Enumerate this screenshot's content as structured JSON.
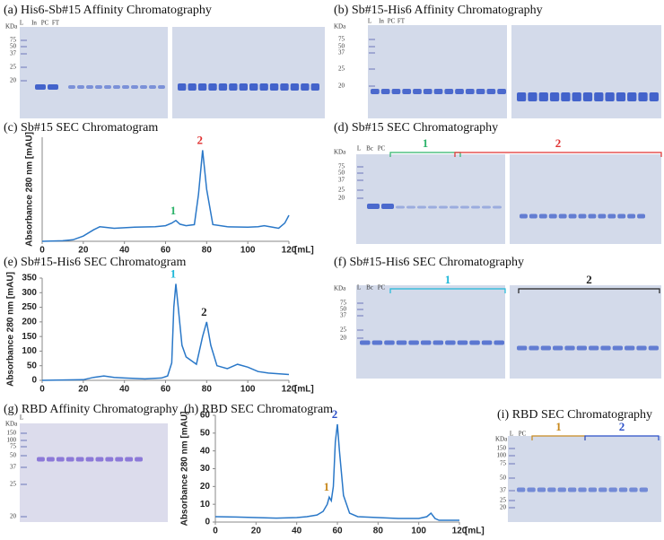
{
  "chart_data": [
    {
      "type": "line",
      "label": "(c)",
      "title": "Sb#15 SEC Chromatogram",
      "ylabel": "Absorbance 280 nm [mAU]",
      "xlabel": "[mL]",
      "color": "#2a78c8",
      "x": [
        0,
        10,
        15,
        20,
        25,
        28,
        30,
        35,
        45,
        55,
        60,
        63,
        65,
        67,
        70,
        74,
        76,
        78,
        80,
        83,
        90,
        100,
        105,
        108,
        112,
        115,
        118,
        120
      ],
      "values": [
        0,
        1,
        3,
        10,
        22,
        28,
        27,
        25,
        27,
        28,
        30,
        35,
        40,
        33,
        30,
        32,
        90,
        175,
        100,
        32,
        28,
        27,
        28,
        30,
        27,
        25,
        35,
        50
      ],
      "xlim": [
        0,
        120
      ],
      "ylim": [
        0,
        200
      ],
      "xticks": [
        0,
        20,
        40,
        60,
        80,
        100,
        120
      ],
      "annotations": [
        {
          "text": "1",
          "color": "#2db36b"
        },
        {
          "text": "2",
          "color": "#e03030"
        }
      ]
    },
    {
      "type": "line",
      "label": "(e)",
      "title": "Sb#15-His6 SEC Chromatogram",
      "ylabel": "Absorbance 280 nm [mAU]",
      "xlabel": "[mL]",
      "color": "#2a78c8",
      "x": [
        0,
        20,
        25,
        30,
        35,
        40,
        50,
        58,
        61,
        63,
        64,
        65,
        66,
        68,
        70,
        75,
        78,
        80,
        82,
        85,
        90,
        95,
        100,
        105,
        110,
        120
      ],
      "values": [
        0,
        2,
        10,
        15,
        10,
        8,
        5,
        8,
        15,
        60,
        250,
        330,
        260,
        120,
        80,
        55,
        150,
        200,
        120,
        50,
        40,
        55,
        45,
        30,
        25,
        20
      ],
      "xlim": [
        0,
        120
      ],
      "ylim": [
        0,
        350
      ],
      "xticks": [
        0,
        20,
        40,
        60,
        80,
        100,
        120
      ],
      "yticks": [
        0,
        50,
        100,
        150,
        200,
        250,
        300,
        350
      ],
      "annotations": [
        {
          "text": "1",
          "color": "#1fb8d8"
        },
        {
          "text": "2",
          "color": "#222222"
        }
      ]
    },
    {
      "type": "line",
      "label": "(h)",
      "title": "RBD SEC Chromatogram",
      "ylabel": "Absorbance 280 nm [mAU]",
      "xlabel": "[mL]",
      "color": "#2a78c8",
      "x": [
        0,
        10,
        20,
        30,
        40,
        45,
        50,
        53,
        55,
        56,
        57,
        58,
        59,
        60,
        61,
        63,
        66,
        70,
        80,
        90,
        100,
        104,
        106,
        108,
        110,
        120
      ],
      "values": [
        3,
        2.8,
        2.5,
        2.2,
        2.5,
        3,
        4,
        6,
        10,
        14,
        12,
        20,
        45,
        55,
        40,
        15,
        5,
        3,
        2.5,
        2,
        2,
        3,
        5,
        2,
        1,
        1
      ],
      "xlim": [
        0,
        120
      ],
      "ylim": [
        0,
        60
      ],
      "xticks": [
        0,
        20,
        40,
        60,
        80,
        100,
        120
      ],
      "yticks": [
        0,
        10,
        20,
        30,
        40,
        50,
        60
      ],
      "annotations": [
        {
          "text": "1",
          "color": "#c88a20"
        },
        {
          "text": "2",
          "color": "#2a4fc8"
        }
      ]
    }
  ],
  "gels": [
    {
      "label": "(a)",
      "title": "His6-Sb#15 Affinity Chromatography",
      "kda": "KDa",
      "markers": [
        "75",
        "50",
        "37",
        "25",
        "20"
      ],
      "lanes": [
        "L",
        "In",
        "PC",
        "FT"
      ],
      "groups": []
    },
    {
      "label": "(b)",
      "title": "Sb#15-His6 Affinity Chromatography",
      "kda": "KDa",
      "markers": [
        "75",
        "50",
        "37",
        "25",
        "20"
      ],
      "lanes": [
        "L",
        "In",
        "PC",
        "FT"
      ],
      "groups": []
    },
    {
      "label": "(d)",
      "title": "Sb#15 SEC Chromatography",
      "kda": "KDa",
      "markers": [
        "75",
        "50",
        "37",
        "25",
        "20"
      ],
      "lanes": [
        "L",
        "Bc",
        "PC"
      ],
      "groups": [
        {
          "text": "1",
          "color": "#2db36b"
        },
        {
          "text": "2",
          "color": "#e03030"
        }
      ]
    },
    {
      "label": "(f)",
      "title": "Sb#15-His6 SEC Chromatography",
      "kda": "KDa",
      "markers": [
        "75",
        "50",
        "37",
        "25",
        "20"
      ],
      "lanes": [
        "L",
        "Bc",
        "PC"
      ],
      "groups": [
        {
          "text": "1",
          "color": "#1fb8d8"
        },
        {
          "text": "2",
          "color": "#222222"
        }
      ]
    },
    {
      "label": "(g)",
      "title": "RBD Affinity Chromatography",
      "kda": "KDa",
      "markers": [
        "150",
        "100",
        "75",
        "50",
        "37",
        "25",
        "20"
      ],
      "lanes": [
        "L"
      ],
      "groups": []
    },
    {
      "label": "(i)",
      "title": "RBD SEC Chromatography",
      "kda": "KDa",
      "markers": [
        "150",
        "100",
        "75",
        "50",
        "37",
        "25",
        "20"
      ],
      "lanes": [
        "L",
        "PC"
      ],
      "groups": [
        {
          "text": "1",
          "color": "#c88a20"
        },
        {
          "text": "2",
          "color": "#2a4fc8"
        }
      ]
    }
  ]
}
